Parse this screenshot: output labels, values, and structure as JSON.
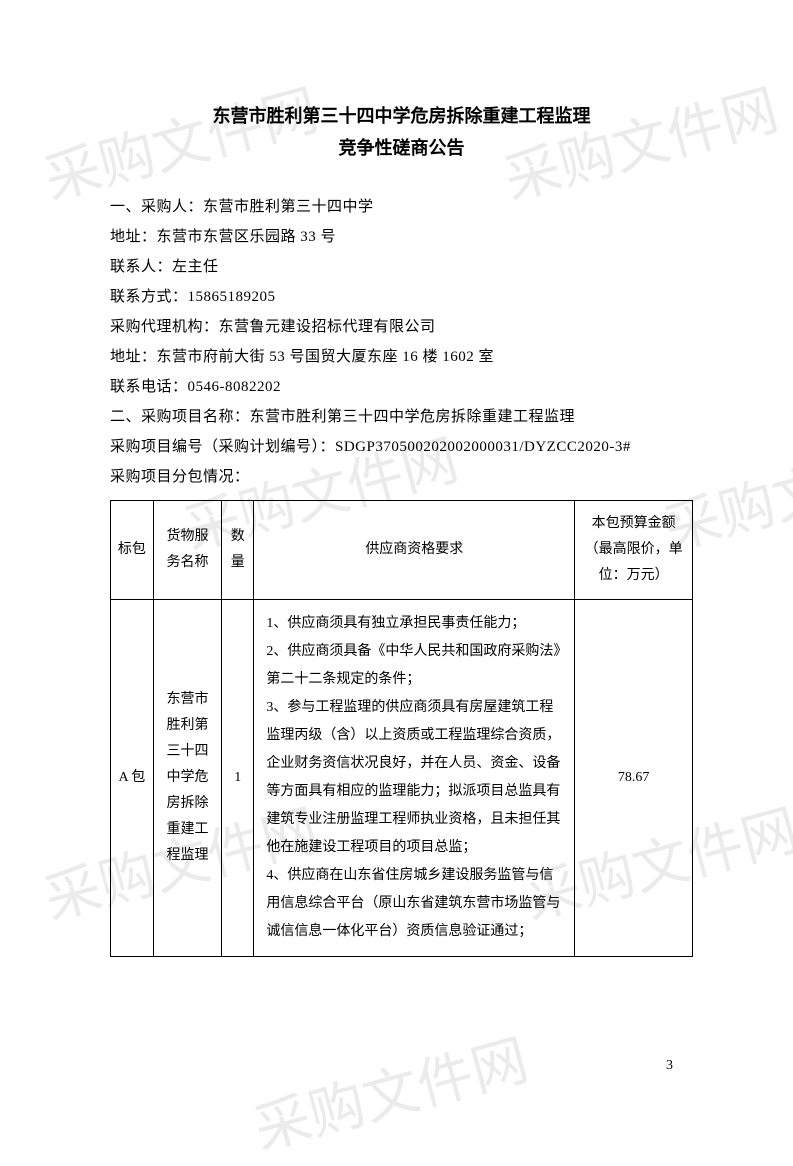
{
  "watermark_text": "采购文件网",
  "title_line1": "东营市胜利第三十四中学危房拆除重建工程监理",
  "title_line2": "竞争性磋商公告",
  "info": {
    "buyer": "一、采购人：东营市胜利第三十四中学",
    "address": "地址：东营市东营区乐园路 33 号",
    "contact": "联系人：左主任",
    "phone": "联系方式：15865189205",
    "agency": "采购代理机构：东营鲁元建设招标代理有限公司",
    "agency_address": "地址：东营市府前大街 53 号国贸大厦东座 16 楼 1602 室",
    "agency_phone": "联系电话：0546-8082202",
    "project_name": "二、采购项目名称：东营市胜利第三十四中学危房拆除重建工程监理",
    "project_no": "采购项目编号（采购计划编号）：SDGP370500202002000031/DYZCC2020-3#",
    "subpackage_label": "采购项目分包情况："
  },
  "table": {
    "headers": {
      "pkg": "标包",
      "name": "货物服务名称",
      "qty": "数量",
      "req": "供应商资格要求",
      "budget": "本包预算金额（最高限价，单位：万元）"
    },
    "row": {
      "pkg": "A 包",
      "name": "东营市胜利第三十四中学危房拆除重建工程监理",
      "qty": "1",
      "req": "1、供应商须具有独立承担民事责任能力；\n2、供应商须具备《中华人民共和国政府采购法》第二十二条规定的条件；\n3、参与工程监理的供应商须具有房屋建筑工程监理丙级（含）以上资质或工程监理综合资质，企业财务资信状况良好，并在人员、资金、设备等方面具有相应的监理能力；拟派项目总监具有建筑专业注册监理工程师执业资格，且未担任其他在施建设工程项目的项目总监；\n4、供应商在山东省住房城乡建设服务监管与信用信息综合平台（原山东省建筑东营市场监管与诚信信息一体化平台）资质信息验证通过；",
      "budget": "78.67"
    }
  },
  "page_number": "3"
}
